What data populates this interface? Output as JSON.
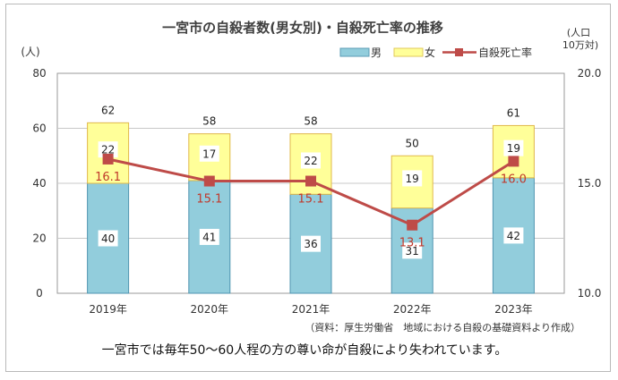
{
  "chart_data": {
    "type": "bar",
    "title": "一宮市の自殺者数(男女別)・自殺死亡率の推移",
    "ylabel_left": "(人)",
    "ylabel_right_line1": "(人口",
    "ylabel_right_line2": "10万対)",
    "categories": [
      "2019年",
      "2020年",
      "2021年",
      "2022年",
      "2023年"
    ],
    "ylim": [
      0,
      80
    ],
    "yticks": [
      "0",
      "20",
      "40",
      "60",
      "80"
    ],
    "y2lim": [
      10.0,
      20.0
    ],
    "y2ticks": [
      "10.0",
      "15.0",
      "20.0"
    ],
    "stacked": true,
    "series": [
      {
        "name": "男",
        "kind": "bar",
        "color": "#92cddc",
        "values": [
          40,
          41,
          36,
          31,
          42
        ]
      },
      {
        "name": "女",
        "kind": "bar",
        "color": "#ffff99",
        "values": [
          22,
          17,
          22,
          19,
          19
        ]
      },
      {
        "name": "自殺死亡率",
        "kind": "line",
        "axis": "right",
        "color": "#be4b48",
        "values": [
          16.1,
          15.1,
          15.1,
          13.1,
          16.0
        ],
        "labels": [
          "16.1",
          "15.1",
          "15.1",
          "13.1",
          "16.0"
        ]
      }
    ],
    "totals": [
      "62",
      "58",
      "58",
      "50",
      "61"
    ],
    "grid": "horizontal",
    "legend_position": "top-right",
    "source_note": "（資料：厚生労働省　地域における自殺の基礎資料より作成）"
  },
  "caption": "一宮市では毎年50～60人程の方の尊い命が自殺により失われています。"
}
